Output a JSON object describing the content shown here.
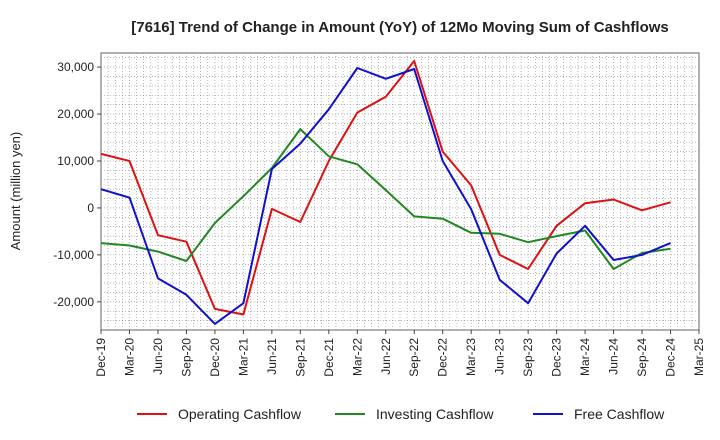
{
  "chart_data": {
    "type": "line",
    "title": "[7616]  Trend of Change in Amount (YoY) of 12Mo Moving Sum of Cashflows",
    "xlabel": "",
    "ylabel": "Amount (million yen)",
    "ylim": [
      -26000,
      33000
    ],
    "yticks": [
      -20000,
      -10000,
      0,
      10000,
      20000,
      30000
    ],
    "ytick_labels": [
      "-20,000",
      "-10,000",
      "0",
      "10,000",
      "20,000",
      "30,000"
    ],
    "grid": true,
    "legend_position": "bottom",
    "x": [
      "Dec-19",
      "Mar-20",
      "Jun-20",
      "Sep-20",
      "Dec-20",
      "Mar-21",
      "Jun-21",
      "Sep-21",
      "Dec-21",
      "Mar-22",
      "Jun-22",
      "Sep-22",
      "Dec-22",
      "Mar-23",
      "Jun-23",
      "Sep-23",
      "Dec-23",
      "Mar-24",
      "Jun-24",
      "Sep-24",
      "Dec-24",
      "Mar-25"
    ],
    "series": [
      {
        "name": "Operating Cashflow",
        "color": "#dd1111",
        "values": [
          11500,
          10000,
          -5800,
          -7200,
          -21500,
          -22700,
          -200,
          -3000,
          10000,
          20300,
          23700,
          31300,
          12000,
          4800,
          -10000,
          -13000,
          -3800,
          1000,
          1800,
          -500,
          1200,
          null
        ]
      },
      {
        "name": "Investing Cashflow",
        "color": "#228822",
        "values": [
          -7500,
          -8000,
          -9300,
          -11300,
          -3200,
          2500,
          8500,
          16800,
          11000,
          9300,
          3800,
          -1800,
          -2300,
          -5300,
          -5500,
          -7300,
          -6000,
          -4800,
          -13000,
          -9600,
          -8700,
          null
        ]
      },
      {
        "name": "Free Cashflow",
        "color": "#1111cc",
        "values": [
          4000,
          2200,
          -15000,
          -18500,
          -24700,
          -20300,
          8300,
          13700,
          21000,
          29800,
          27500,
          29600,
          10000,
          -300,
          -15300,
          -20300,
          -9700,
          -3800,
          -11100,
          -10000,
          -7500,
          null
        ]
      }
    ]
  }
}
